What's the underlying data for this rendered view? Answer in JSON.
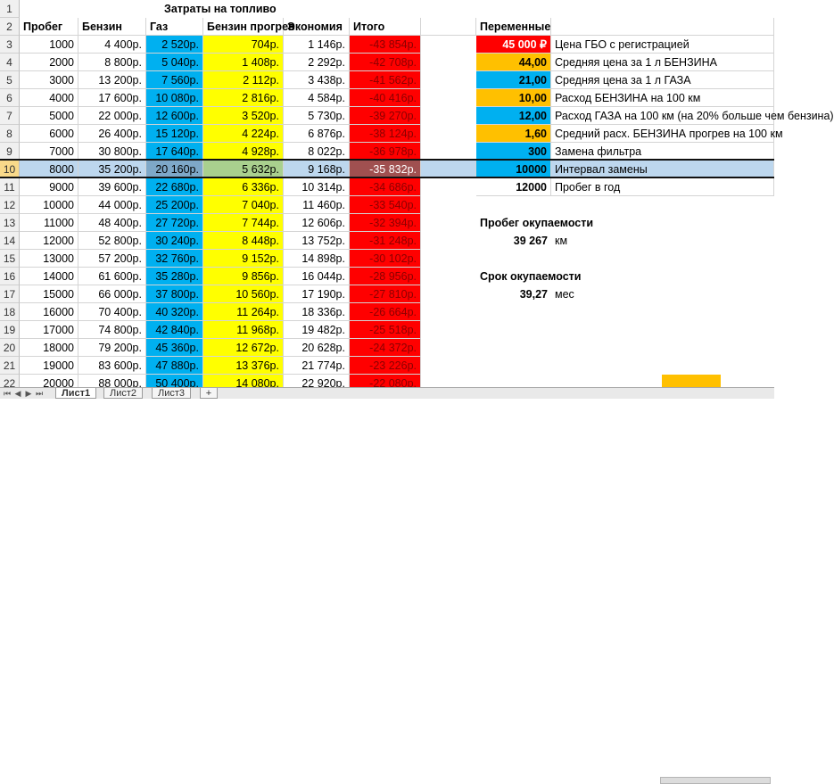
{
  "colors": {
    "gas_col": "#00b0f0",
    "warm_col": "#ffff00",
    "total_col": "#ff0000",
    "red": "#ff0000",
    "orange": "#ffc000",
    "blue": "#00b0f0",
    "selected_row": "#bdd7ee",
    "selected_gas": "#7ea8c8",
    "selected_warm": "#a9d08e",
    "selected_total": "#a05050"
  },
  "sheet": {
    "title": "Затраты на топливо",
    "row_numbers": [
      "1",
      "2",
      "3",
      "4",
      "5",
      "6",
      "7",
      "8",
      "9",
      "10",
      "11",
      "12",
      "13",
      "14",
      "15",
      "16",
      "17",
      "18",
      "19",
      "20",
      "21",
      "22"
    ],
    "selected_row_number": "10",
    "headers": {
      "mileage": "Пробег",
      "petrol": "Бензин",
      "gas": "Газ",
      "warmup": "Бензин прогрев",
      "savings": "Экономия",
      "total": "Итого"
    },
    "rows": [
      {
        "mileage": "1000",
        "petrol": "4 400р.",
        "gas": "2 520р.",
        "warmup": "704р.",
        "savings": "1 146р.",
        "total": "-43 854р."
      },
      {
        "mileage": "2000",
        "petrol": "8 800р.",
        "gas": "5 040р.",
        "warmup": "1 408р.",
        "savings": "2 292р.",
        "total": "-42 708р."
      },
      {
        "mileage": "3000",
        "petrol": "13 200р.",
        "gas": "7 560р.",
        "warmup": "2 112р.",
        "savings": "3 438р.",
        "total": "-41 562р."
      },
      {
        "mileage": "4000",
        "petrol": "17 600р.",
        "gas": "10 080р.",
        "warmup": "2 816р.",
        "savings": "4 584р.",
        "total": "-40 416р."
      },
      {
        "mileage": "5000",
        "petrol": "22 000р.",
        "gas": "12 600р.",
        "warmup": "3 520р.",
        "savings": "5 730р.",
        "total": "-39 270р."
      },
      {
        "mileage": "6000",
        "petrol": "26 400р.",
        "gas": "15 120р.",
        "warmup": "4 224р.",
        "savings": "6 876р.",
        "total": "-38 124р."
      },
      {
        "mileage": "7000",
        "petrol": "30 800р.",
        "gas": "17 640р.",
        "warmup": "4 928р.",
        "savings": "8 022р.",
        "total": "-36 978р."
      },
      {
        "mileage": "8000",
        "petrol": "35 200р.",
        "gas": "20 160р.",
        "warmup": "5 632р.",
        "savings": "9 168р.",
        "total": "-35 832р."
      },
      {
        "mileage": "9000",
        "petrol": "39 600р.",
        "gas": "22 680р.",
        "warmup": "6 336р.",
        "savings": "10 314р.",
        "total": "-34 686р."
      },
      {
        "mileage": "10000",
        "petrol": "44 000р.",
        "gas": "25 200р.",
        "warmup": "7 040р.",
        "savings": "11 460р.",
        "total": "-33 540р."
      },
      {
        "mileage": "11000",
        "petrol": "48 400р.",
        "gas": "27 720р.",
        "warmup": "7 744р.",
        "savings": "12 606р.",
        "total": "-32 394р."
      },
      {
        "mileage": "12000",
        "petrol": "52 800р.",
        "gas": "30 240р.",
        "warmup": "8 448р.",
        "savings": "13 752р.",
        "total": "-31 248р."
      },
      {
        "mileage": "13000",
        "petrol": "57 200р.",
        "gas": "32 760р.",
        "warmup": "9 152р.",
        "savings": "14 898р.",
        "total": "-30 102р."
      },
      {
        "mileage": "14000",
        "petrol": "61 600р.",
        "gas": "35 280р.",
        "warmup": "9 856р.",
        "savings": "16 044р.",
        "total": "-28 956р."
      },
      {
        "mileage": "15000",
        "petrol": "66 000р.",
        "gas": "37 800р.",
        "warmup": "10 560р.",
        "savings": "17 190р.",
        "total": "-27 810р."
      },
      {
        "mileage": "16000",
        "petrol": "70 400р.",
        "gas": "40 320р.",
        "warmup": "11 264р.",
        "savings": "18 336р.",
        "total": "-26 664р."
      },
      {
        "mileage": "17000",
        "petrol": "74 800р.",
        "gas": "42 840р.",
        "warmup": "11 968р.",
        "savings": "19 482р.",
        "total": "-25 518р."
      },
      {
        "mileage": "18000",
        "petrol": "79 200р.",
        "gas": "45 360р.",
        "warmup": "12 672р.",
        "savings": "20 628р.",
        "total": "-24 372р."
      },
      {
        "mileage": "19000",
        "petrol": "83 600р.",
        "gas": "47 880р.",
        "warmup": "13 376р.",
        "savings": "21 774р.",
        "total": "-23 226р."
      },
      {
        "mileage": "20000",
        "petrol": "88 000р.",
        "gas": "50 400р.",
        "warmup": "14 080р.",
        "savings": "22 920р.",
        "total": "-22 080р."
      }
    ],
    "variables": {
      "header": "Переменные",
      "items": [
        {
          "value": "45 000 ₽",
          "label": "Цена ГБО с регистрацией",
          "color": "#ff0000"
        },
        {
          "value": "44,00",
          "label": "Средняя цена за 1 л БЕНЗИНА",
          "color": "#ffc000"
        },
        {
          "value": "21,00",
          "label": "Средняя цена за 1 л ГАЗА",
          "color": "#00b0f0"
        },
        {
          "value": "10,00",
          "label": "Расход БЕНЗИНА на 100 км",
          "color": "#ffc000"
        },
        {
          "value": "12,00",
          "label": "Расход ГАЗА на 100 км (на 20% больше чем бензина)",
          "color": "#00b0f0"
        },
        {
          "value": "1,60",
          "label": "Средний расх. БЕНЗИНА прогрев на 100 км",
          "color": "#ffc000"
        },
        {
          "value": "300",
          "label": "Замена фильтра",
          "color": "#00b0f0"
        },
        {
          "value": "10000",
          "label": "Интервал замены",
          "color": "#00b0f0"
        },
        {
          "value": "12000",
          "label": "Пробег в год",
          "color": ""
        }
      ],
      "payback_mileage_title": "Пробег окупаемости",
      "payback_mileage_value": "39 267",
      "payback_mileage_unit": "км",
      "payback_time_title": "Срок окупаемости",
      "payback_time_value": "39,27",
      "payback_time_unit": "мес"
    }
  },
  "tabs": {
    "items": [
      "Лист1",
      "Лист2",
      "Лист3"
    ],
    "active": 0,
    "nav": [
      "⏮",
      "◀",
      "▶",
      "⏭"
    ]
  }
}
